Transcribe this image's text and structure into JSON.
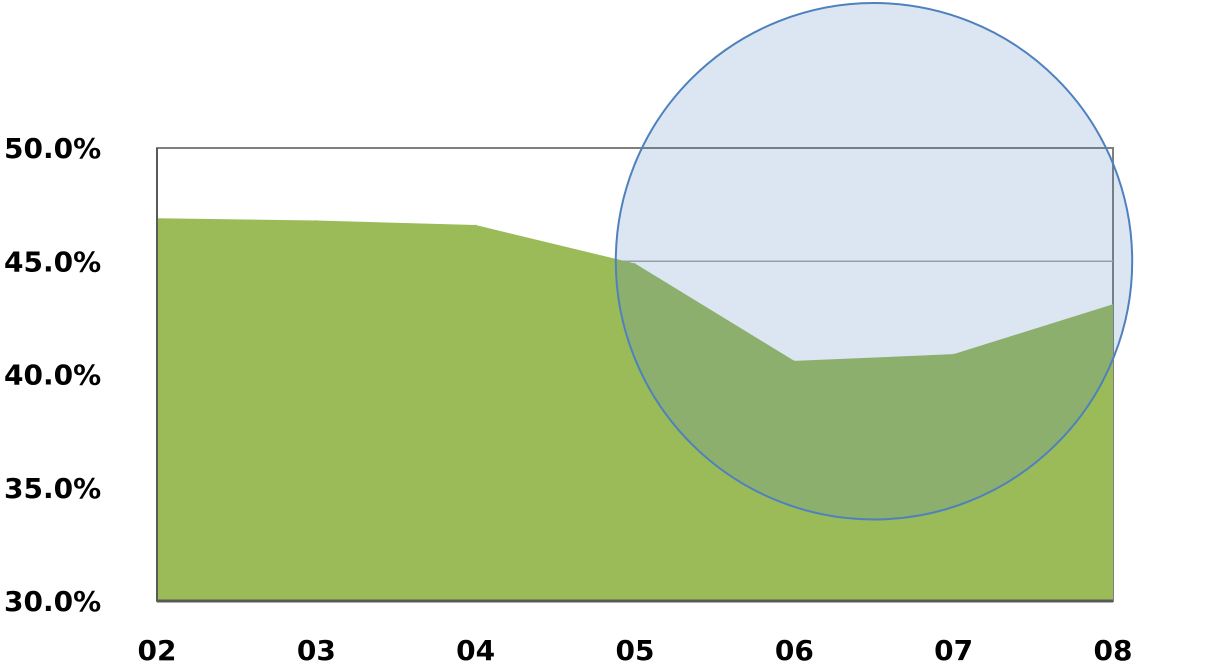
{
  "colors": {
    "area_fill": "#9bbb59",
    "plot_border": "#7f7f7f",
    "gridline": "#a6a6a6",
    "highlight_fill": "#4f81bd",
    "highlight_stroke": "#4f81bd"
  },
  "chart_data": {
    "type": "area",
    "title": "",
    "xlabel": "",
    "ylabel": "",
    "categories": [
      "02",
      "03",
      "04",
      "05",
      "06",
      "07",
      "08"
    ],
    "values": [
      46.9,
      46.8,
      46.6,
      44.9,
      40.6,
      40.9,
      43.1
    ],
    "ylim": [
      30,
      50
    ],
    "y_ticks": [
      "50.0%",
      "45.0%",
      "40.0%",
      "35.0%",
      "30.0%"
    ],
    "y_tick_values": [
      50,
      45,
      40,
      35,
      30
    ],
    "gridlines": [
      45
    ],
    "legend": "none",
    "annotations": [
      {
        "type": "highlight-circle",
        "category_center": "06.5",
        "value_center": 45.0,
        "value_radius": 11.4
      }
    ]
  }
}
